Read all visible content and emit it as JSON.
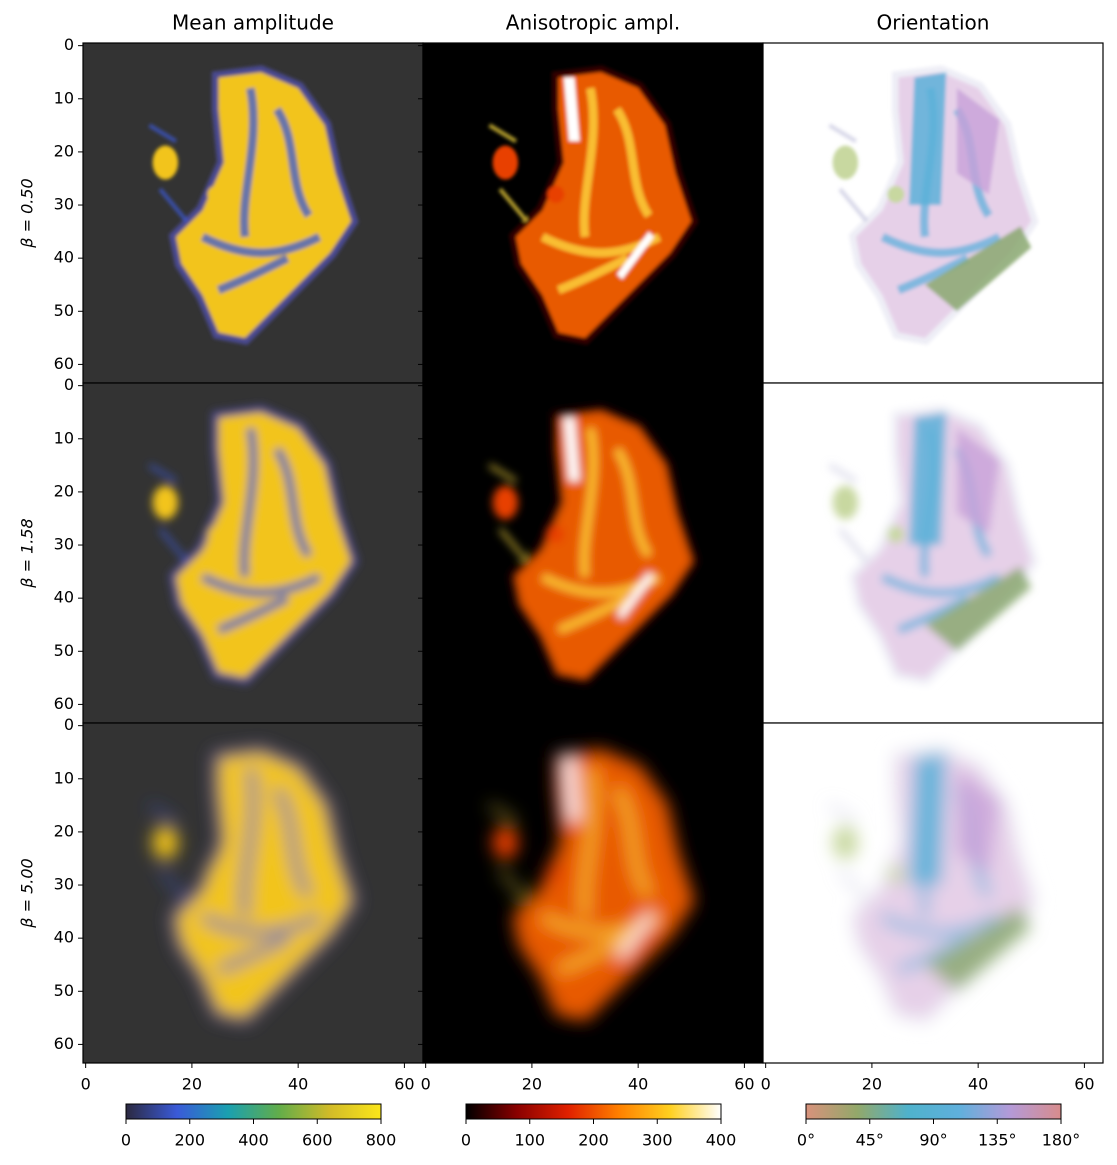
{
  "chart_data": {
    "type": "image",
    "columns": [
      {
        "title": "Mean amplitude",
        "background": "#333333",
        "colorbar": {
          "lim": [
            0,
            800
          ],
          "ticks": [
            0,
            200,
            400,
            600,
            800
          ],
          "colors": [
            "#2b2940",
            "#3a5ad8",
            "#1aa0b0",
            "#62ad4a",
            "#d2bb28",
            "#fbe61a"
          ]
        }
      },
      {
        "title": "Anisotropic ampl.",
        "background": "#000000",
        "colorbar": {
          "lim": [
            0,
            400
          ],
          "ticks": [
            0,
            100,
            200,
            300,
            400
          ],
          "colors": [
            "#000000",
            "#8a0000",
            "#e02000",
            "#ff8000",
            "#ffd020",
            "#ffffff"
          ]
        }
      },
      {
        "title": "Orientation",
        "background": "#ffffff",
        "colorbar": {
          "lim": [
            0,
            180
          ],
          "ticks": [
            {
              "value": 0,
              "label": "0°"
            },
            {
              "value": 45,
              "label": "45°"
            },
            {
              "value": 90,
              "label": "90°"
            },
            {
              "value": 135,
              "label": "135°"
            },
            {
              "value": 180,
              "label": "180°"
            }
          ],
          "colors": [
            "#d8927c",
            "#93a86a",
            "#4fb2cc",
            "#5fb0dc",
            "#b49ad8",
            "#d88c8c"
          ]
        }
      }
    ],
    "rows": [
      "β = 0.50",
      "β = 1.58",
      "β = 5.00"
    ],
    "xlim": [
      -0.5,
      63.5
    ],
    "ylim": [
      63.5,
      -0.5
    ],
    "xticks": [
      0,
      20,
      40,
      60
    ],
    "yticks": [
      0,
      10,
      20,
      30,
      40,
      50,
      60
    ]
  }
}
